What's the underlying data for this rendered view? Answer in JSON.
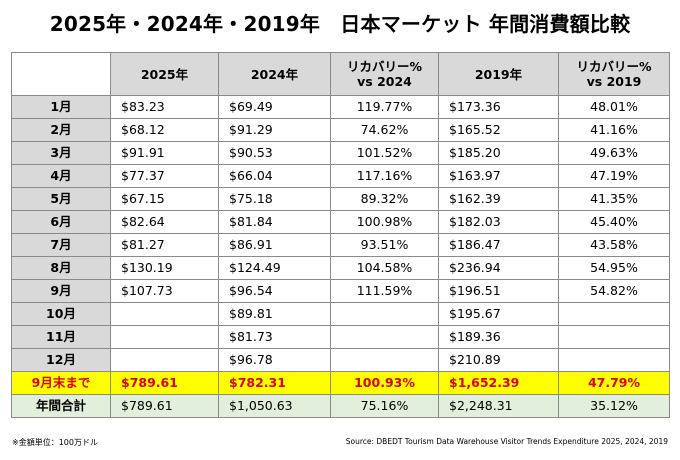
{
  "title": "2025年・2024年・2019年　日本マーケット 年間消費額比較",
  "footnote": "※金額単位：100万ドル",
  "source": "Source: DBEDT Tourism Data Warehouse Visitor Trends Expenditure 2025, 2024, 2019",
  "chart_data": {
    "type": "table",
    "title": "2025年・2024年・2019年　日本マーケット 年間消費額比較",
    "columns": [
      "",
      "2025年",
      "2024年",
      "リカバリー%\nvs 2024",
      "2019年",
      "リカバリー%\nvs 2019"
    ],
    "rows": [
      [
        "1月",
        "$83.23",
        "$69.49",
        "119.77%",
        "$173.36",
        "48.01%"
      ],
      [
        "2月",
        "$68.12",
        "$91.29",
        "74.62%",
        "$165.52",
        "41.16%"
      ],
      [
        "3月",
        "$91.91",
        "$90.53",
        "101.52%",
        "$185.20",
        "49.63%"
      ],
      [
        "4月",
        "$77.37",
        "$66.04",
        "117.16%",
        "$163.97",
        "47.19%"
      ],
      [
        "5月",
        "$67.15",
        "$75.18",
        "89.32%",
        "$162.39",
        "41.35%"
      ],
      [
        "6月",
        "$82.64",
        "$81.84",
        "100.98%",
        "$182.03",
        "45.40%"
      ],
      [
        "7月",
        "$81.27",
        "$86.91",
        "93.51%",
        "$186.47",
        "43.58%"
      ],
      [
        "8月",
        "$130.19",
        "$124.49",
        "104.58%",
        "$236.94",
        "54.95%"
      ],
      [
        "9月",
        "$107.73",
        "$96.54",
        "111.59%",
        "$196.51",
        "54.82%"
      ],
      [
        "10月",
        "",
        "$89.81",
        "",
        "$195.67",
        ""
      ],
      [
        "11月",
        "",
        "$81.73",
        "",
        "$189.36",
        ""
      ],
      [
        "12月",
        "",
        "$96.78",
        "",
        "$210.89",
        ""
      ],
      [
        "9月末まで",
        "$789.61",
        "$782.31",
        "100.93%",
        "$1,652.39",
        "47.79%"
      ],
      [
        "年間合計",
        "$789.61",
        "$1,050.63",
        "75.16%",
        "$2,248.31",
        "35.12%"
      ]
    ],
    "highlight_colors": {
      "ytd_row_bg": "#ffff00",
      "ytd_row_text": "#e00000",
      "total_row_bg": "#e2efda",
      "header_bg": "#d9d9d9"
    }
  }
}
